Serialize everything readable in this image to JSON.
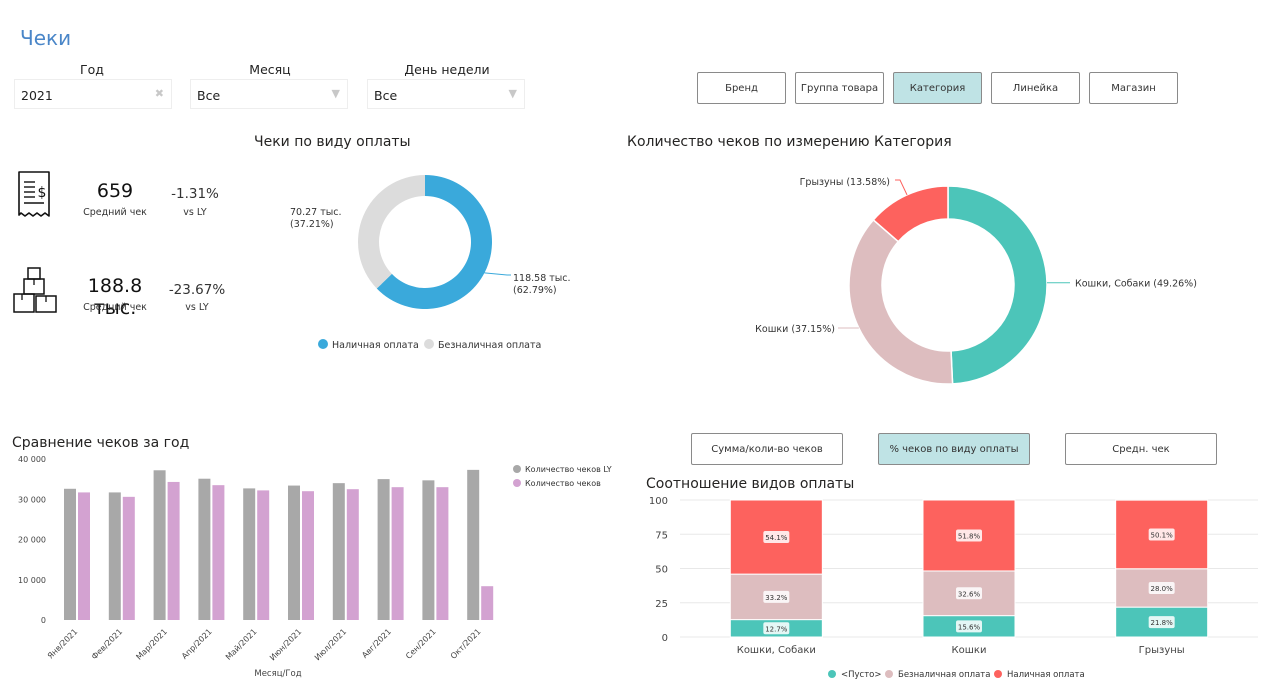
{
  "page": {
    "title": "Чеки"
  },
  "filters": [
    {
      "label": "Год",
      "value": "2021",
      "icon": "clear-icon"
    },
    {
      "label": "Месяц",
      "value": "Все",
      "icon": "chevron-down-icon"
    },
    {
      "label": "День недели",
      "value": "Все",
      "icon": "chevron-down-icon"
    }
  ],
  "dimension_buttons": [
    {
      "label": "Бренд",
      "active": false
    },
    {
      "label": "Группа товара",
      "active": false
    },
    {
      "label": "Категория",
      "active": true
    },
    {
      "label": "Линейка",
      "active": false
    },
    {
      "label": "Магазин",
      "active": false
    }
  ],
  "kpis": [
    {
      "icon": "receipt-icon",
      "value": "659",
      "label": "Средний чек",
      "change": "-1.31%",
      "change_label": "vs LY"
    },
    {
      "icon": "boxes-icon",
      "value": "188.8 тыс.",
      "label": "Средний чек",
      "change": "-23.67%",
      "change_label": "vs LY"
    }
  ],
  "measure_buttons": [
    {
      "label": "Сумма/коли-во чеков",
      "active": false
    },
    {
      "label": "% чеков по виду оплаты",
      "active": true
    },
    {
      "label": "Средн. чек",
      "active": false
    }
  ],
  "colors": {
    "cash": "#3aa9db",
    "noncash": "#dcdcdc",
    "teal": "#4cc5b9",
    "pink": "#ddbdbf",
    "red": "#fd625e",
    "ly": "#a8a8a8",
    "cy": "#d3a2d1",
    "accent": "#4a86c8",
    "active_btn": "#bfe3e5"
  },
  "chart_data": [
    {
      "type": "pie",
      "title": "Чеки по виду оплаты",
      "slices": [
        {
          "name": "Наличная оплата",
          "value": 118.58,
          "label_line1": "118.58 тыс.",
          "label_line2": "(62.79%)",
          "color": "#3aa9db"
        },
        {
          "name": "Безналичная оплата",
          "value": 70.27,
          "label_line1": "70.27 тыс.",
          "label_line2": "(37.21%)",
          "color": "#dcdcdc"
        }
      ],
      "legend": [
        "Наличная оплата",
        "Безналичная оплата"
      ],
      "legend_position": "bottom"
    },
    {
      "type": "pie",
      "title": "Количество чеков по измерению Категория",
      "slices": [
        {
          "name": "Кошки, Собаки",
          "value": 49.26,
          "label": "Кошки, Собаки (49.26%)",
          "color": "#4cc5b9"
        },
        {
          "name": "Кошки",
          "value": 37.15,
          "label": "Кошки (37.15%)",
          "color": "#ddbdbf"
        },
        {
          "name": "Грызуны",
          "value": 13.58,
          "label": "Грызуны (13.58%)",
          "color": "#fd625e"
        }
      ]
    },
    {
      "type": "bar",
      "title": "Сравнение чеков за год",
      "xlabel": "Месяц/Год",
      "ylabel": "",
      "ylim": [
        0,
        40000
      ],
      "yticks": [
        {
          "value": 0,
          "label": "0"
        },
        {
          "value": 10000,
          "label": "10 000"
        },
        {
          "value": 20000,
          "label": "20 000"
        },
        {
          "value": 30000,
          "label": "30 000"
        },
        {
          "value": 40000,
          "label": "40 000"
        }
      ],
      "categories": [
        "Янв/2021",
        "Фев/2021",
        "Мар/2021",
        "Апр/2021",
        "Май/2021",
        "Июн/2021",
        "Июл/2021",
        "Авг/2021",
        "Сен/2021",
        "Окт/2021"
      ],
      "series": [
        {
          "name": "Количество чеков LY",
          "color": "#a8a8a8",
          "values": [
            32600,
            31700,
            37200,
            35100,
            32700,
            33400,
            34000,
            35000,
            34700,
            37300
          ]
        },
        {
          "name": "Количество чеков",
          "color": "#d3a2d1",
          "values": [
            31700,
            30600,
            34300,
            33500,
            32200,
            32000,
            32500,
            33000,
            33000,
            8400
          ]
        }
      ],
      "legend_position": "top-right",
      "grid": false
    },
    {
      "type": "bar",
      "stacked": true,
      "title": "Соотношение видов оплаты",
      "ylim": [
        0,
        100
      ],
      "yticks": [
        {
          "value": 0,
          "label": "0"
        },
        {
          "value": 25,
          "label": "25"
        },
        {
          "value": 50,
          "label": "50"
        },
        {
          "value": 75,
          "label": "75"
        },
        {
          "value": 100,
          "label": "100"
        }
      ],
      "categories": [
        "Кошки, Собаки",
        "Кошки",
        "Грызуны"
      ],
      "series": [
        {
          "name": "<Пусто>",
          "color": "#4cc5b9",
          "values": [
            12.7,
            15.6,
            21.8
          ],
          "labels": [
            "12.7%",
            "15.6%",
            "21.8%"
          ]
        },
        {
          "name": "Безналичная оплата",
          "color": "#ddbdbf",
          "values": [
            33.2,
            32.6,
            28.0
          ],
          "labels": [
            "33.2%",
            "32.6%",
            "28.0%"
          ]
        },
        {
          "name": "Наличная оплата",
          "color": "#fd625e",
          "values": [
            54.1,
            51.8,
            50.1
          ],
          "labels": [
            "54.1%",
            "51.8%",
            "50.1%"
          ]
        }
      ],
      "legend_position": "bottom",
      "grid": true
    }
  ]
}
